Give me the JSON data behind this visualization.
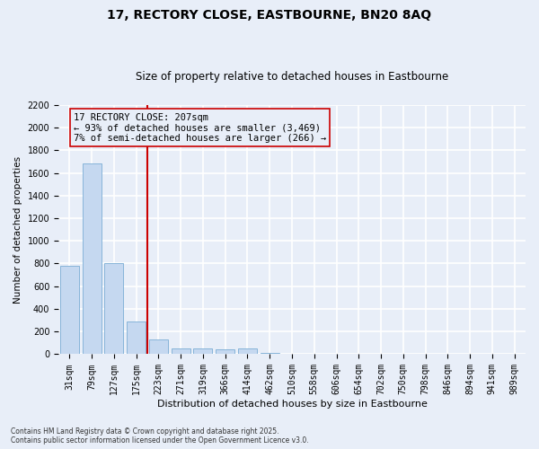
{
  "title1": "17, RECTORY CLOSE, EASTBOURNE, BN20 8AQ",
  "title2": "Size of property relative to detached houses in Eastbourne",
  "xlabel": "Distribution of detached houses by size in Eastbourne",
  "ylabel": "Number of detached properties",
  "categories": [
    "31sqm",
    "79sqm",
    "127sqm",
    "175sqm",
    "223sqm",
    "271sqm",
    "319sqm",
    "366sqm",
    "414sqm",
    "462sqm",
    "510sqm",
    "558sqm",
    "606sqm",
    "654sqm",
    "702sqm",
    "750sqm",
    "798sqm",
    "846sqm",
    "894sqm",
    "941sqm",
    "989sqm"
  ],
  "values": [
    780,
    1680,
    800,
    290,
    130,
    55,
    50,
    40,
    55,
    10,
    5,
    0,
    0,
    0,
    0,
    0,
    0,
    0,
    0,
    0,
    0
  ],
  "bar_color": "#c5d8f0",
  "bar_edge_color": "#7aadd4",
  "highlight_line_color": "#cc0000",
  "annotation_box_color": "#cc0000",
  "annotation_text": "17 RECTORY CLOSE: 207sqm\n← 93% of detached houses are smaller (3,469)\n7% of semi-detached houses are larger (266) →",
  "annotation_fontsize": 7.5,
  "ylim": [
    0,
    2200
  ],
  "yticks": [
    0,
    200,
    400,
    600,
    800,
    1000,
    1200,
    1400,
    1600,
    1800,
    2000,
    2200
  ],
  "footer1": "Contains HM Land Registry data © Crown copyright and database right 2025.",
  "footer2": "Contains public sector information licensed under the Open Government Licence v3.0.",
  "bg_color": "#e8eef8",
  "plot_bg_color": "#e8eef8",
  "grid_color": "#ffffff",
  "title_fontsize": 10,
  "subtitle_fontsize": 8.5,
  "ylabel_fontsize": 7.5,
  "xlabel_fontsize": 8,
  "tick_fontsize": 7,
  "footer_fontsize": 5.5
}
